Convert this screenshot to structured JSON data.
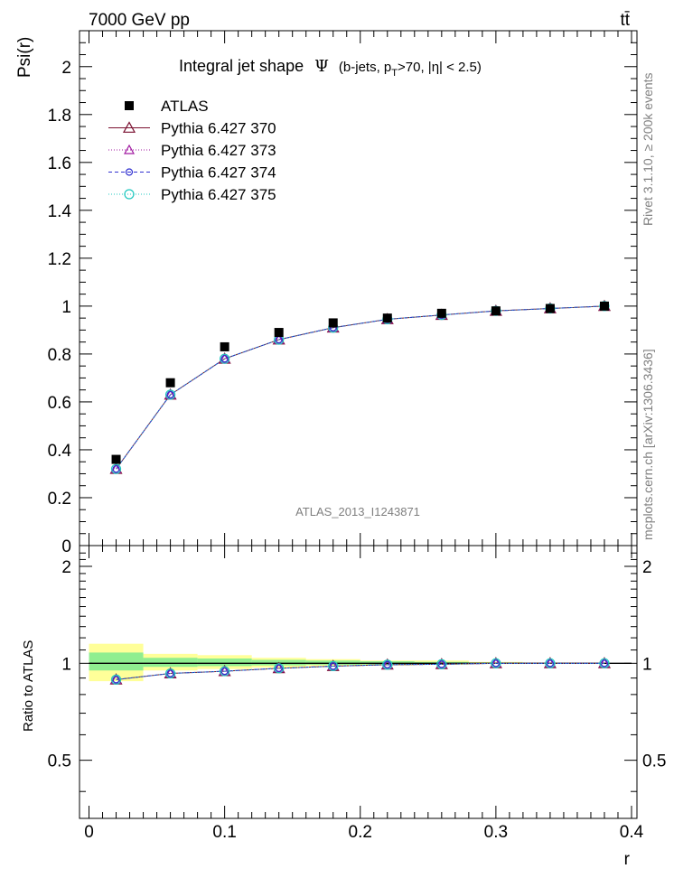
{
  "header": {
    "energy": "7000 GeV pp",
    "process": "tt̄"
  },
  "side_labels": {
    "rivet": "Rivet 3.1.10, ≥ 200k events",
    "mcplots": "mcplots.cern.ch [arXiv:1306.3436]"
  },
  "chart_data": [
    {
      "type": "scatter",
      "title_main": "Integral jet shape",
      "title_symbol": "Ψ",
      "title_cuts": "(b-jets, p",
      "title_sub": "T",
      "title_cuts2": ">70, |η| < 2.5)",
      "ylabel": "Psi(r)",
      "xlabel": "r",
      "watermark": "ATLAS_2013_I1243871",
      "xlim": [
        -0.007,
        0.404
      ],
      "ylim": [
        0,
        2.15
      ],
      "y_ticks": [
        0,
        0.2,
        0.4,
        0.6,
        0.8,
        1,
        1.2,
        1.4,
        1.6,
        1.8,
        2
      ],
      "y_tick_labels": [
        "0",
        "0.2",
        "0.4",
        "0.6",
        "0.8",
        "1",
        "1.2",
        "1.4",
        "1.6",
        "1.8",
        "2"
      ],
      "x": [
        0.02,
        0.06,
        0.1,
        0.14,
        0.18,
        0.22,
        0.26,
        0.3,
        0.34,
        0.38
      ],
      "data": {
        "name": "ATLAS",
        "values": [
          0.36,
          0.68,
          0.83,
          0.89,
          0.93,
          0.95,
          0.97,
          0.98,
          0.99,
          1.0
        ]
      },
      "series": [
        {
          "name": "Pythia 6.427 370",
          "color": "#7a1030",
          "marker": "triangle",
          "dash": "",
          "values": [
            0.32,
            0.63,
            0.78,
            0.86,
            0.91,
            0.945,
            0.963,
            0.98,
            0.99,
            1.0
          ]
        },
        {
          "name": "Pythia 6.427 373",
          "color": "#a01aa0",
          "marker": "triangle-small",
          "dash": "1,2",
          "values": [
            0.32,
            0.63,
            0.78,
            0.86,
            0.91,
            0.945,
            0.963,
            0.98,
            0.99,
            1.0
          ]
        },
        {
          "name": "Pythia 6.427 374",
          "color": "#3030d0",
          "marker": "circle",
          "dash": "4,3",
          "values": [
            0.32,
            0.63,
            0.78,
            0.86,
            0.91,
            0.945,
            0.963,
            0.98,
            0.99,
            1.0
          ]
        },
        {
          "name": "Pythia 6.427 375",
          "color": "#20c8c0",
          "marker": "circle-large",
          "dash": "1,2",
          "values": [
            0.32,
            0.63,
            0.78,
            0.86,
            0.91,
            0.945,
            0.963,
            0.98,
            0.99,
            1.0
          ]
        }
      ],
      "legend_position": "top-left"
    },
    {
      "type": "scatter",
      "ylabel": "Ratio to ATLAS",
      "xlabel": "r",
      "xlim": [
        -0.007,
        0.404
      ],
      "ylim": [
        0.33,
        2.32
      ],
      "y_ticks": [
        0.5,
        1,
        2
      ],
      "y_tick_labels": [
        "0.5",
        "1",
        "2"
      ],
      "x_ticks": [
        0,
        0.1,
        0.2,
        0.3,
        0.4
      ],
      "x_tick_labels": [
        "0",
        "0.1",
        "0.2",
        "0.3",
        "0.4"
      ],
      "x": [
        0.02,
        0.06,
        0.1,
        0.14,
        0.18,
        0.22,
        0.26,
        0.3,
        0.34,
        0.38
      ],
      "band_edges": [
        0.0,
        0.04,
        0.08,
        0.12,
        0.16,
        0.2,
        0.24,
        0.28,
        0.32,
        0.36,
        0.4
      ],
      "band_outer": [
        [
          0.88,
          1.15
        ],
        [
          0.95,
          1.07
        ],
        [
          0.96,
          1.06
        ],
        [
          0.97,
          1.04
        ],
        [
          0.98,
          1.03
        ],
        [
          0.985,
          1.02
        ],
        [
          0.99,
          1.02
        ],
        [
          0.995,
          1.01
        ],
        [
          0.998,
          1.005
        ],
        [
          0.999,
          1.002
        ]
      ],
      "band_inner": [
        [
          0.95,
          1.08
        ],
        [
          0.975,
          1.04
        ],
        [
          0.98,
          1.035
        ],
        [
          0.985,
          1.025
        ],
        [
          0.99,
          1.02
        ],
        [
          0.992,
          1.015
        ],
        [
          0.995,
          1.01
        ],
        [
          0.997,
          1.005
        ],
        [
          0.999,
          1.003
        ],
        [
          0.999,
          1.001
        ]
      ],
      "ratio": [
        0.89,
        0.93,
        0.945,
        0.965,
        0.98,
        0.99,
        0.993,
        1.0,
        1.0,
        1.0
      ]
    }
  ]
}
